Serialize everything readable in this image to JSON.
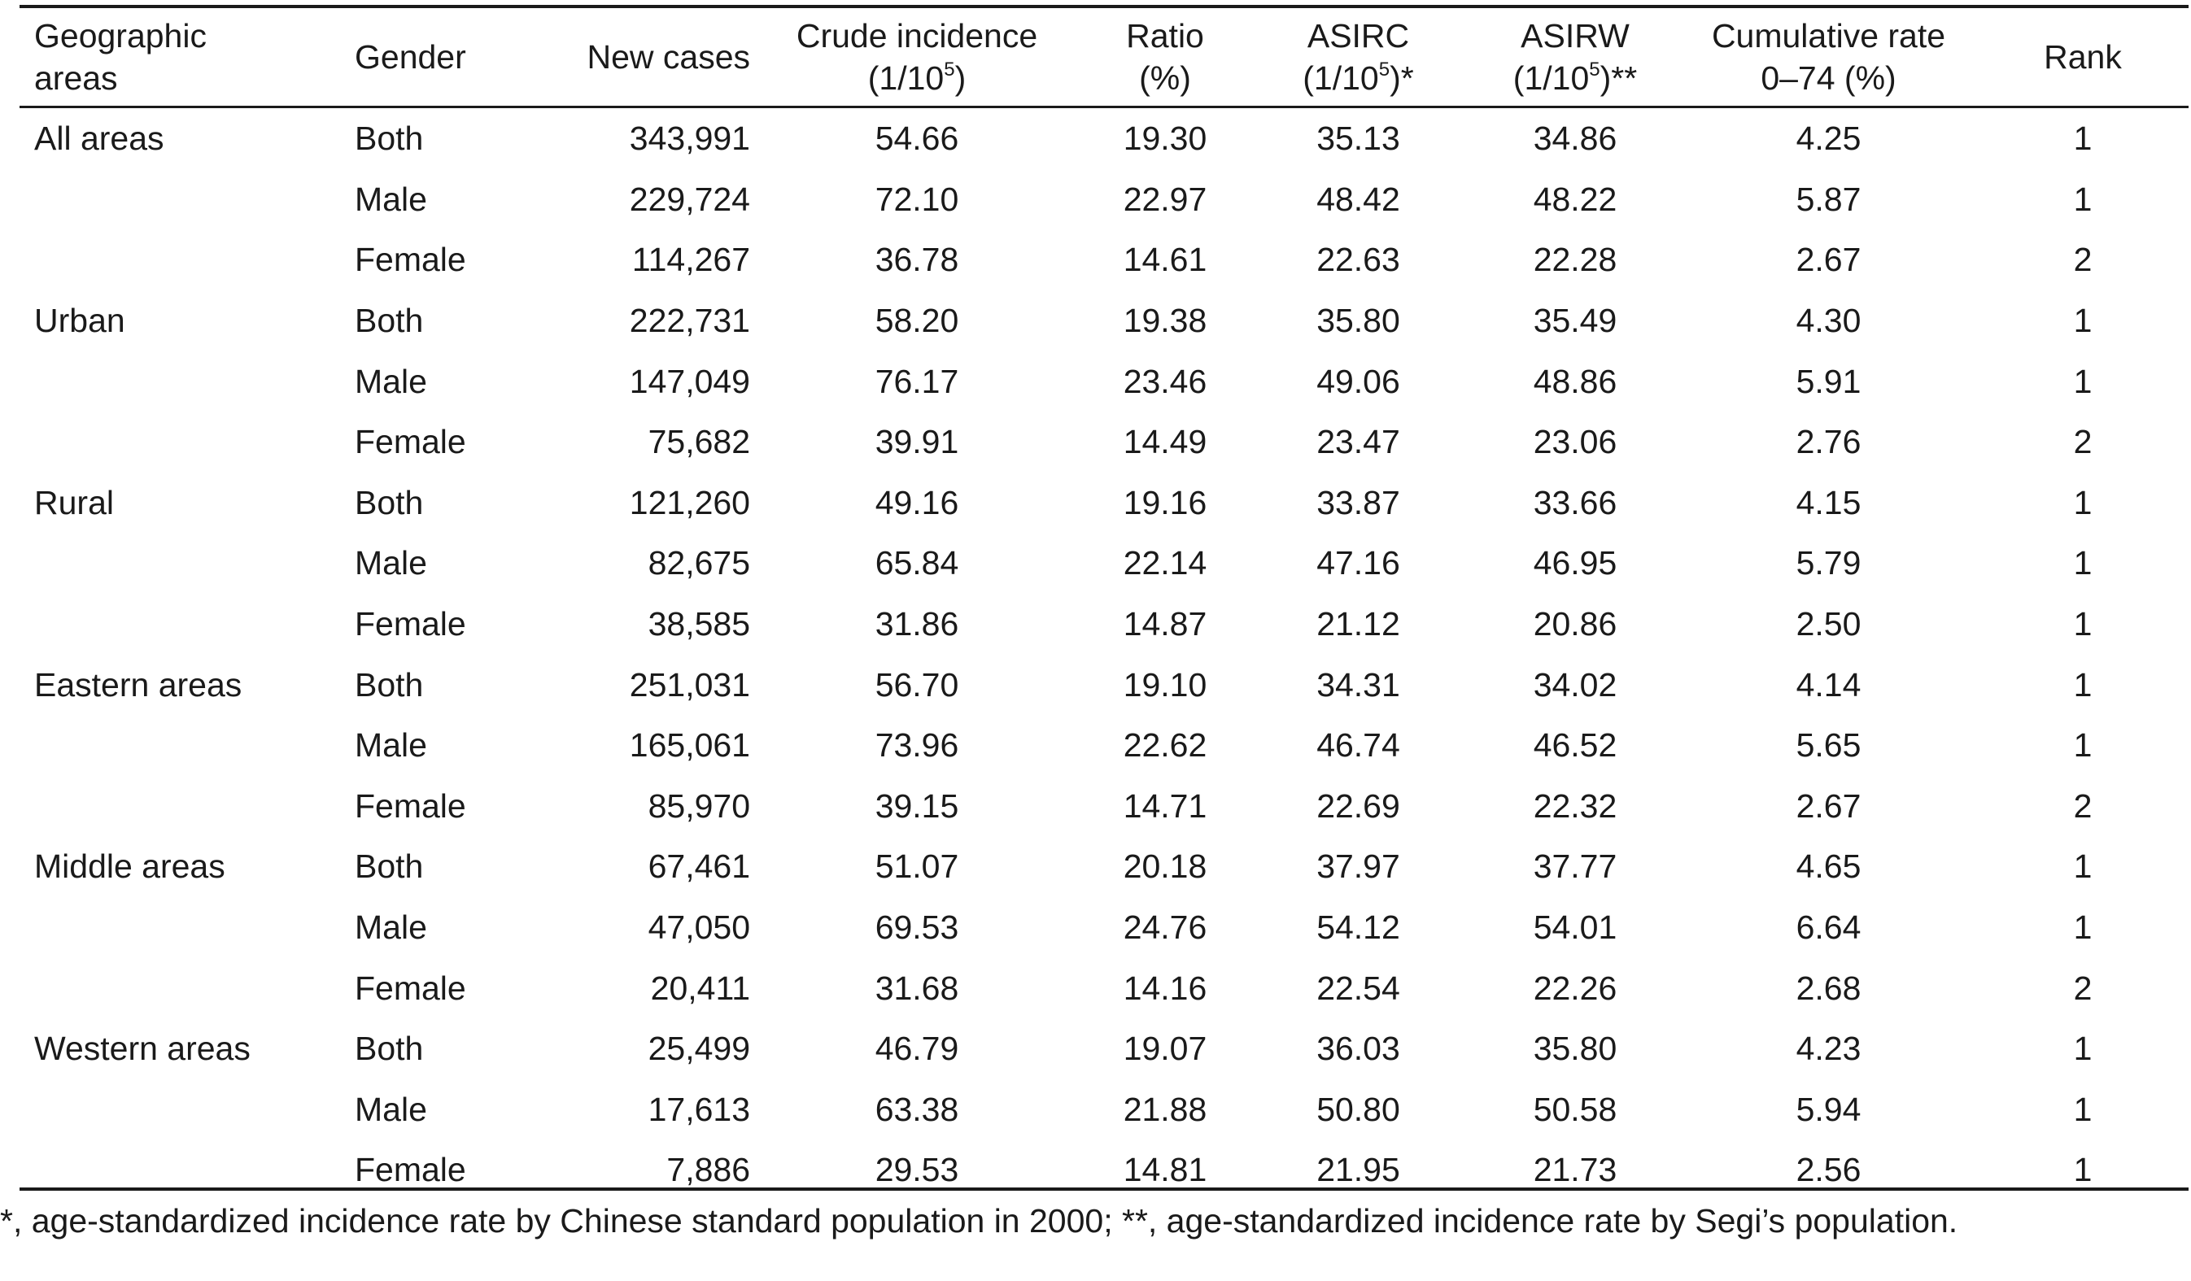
{
  "header": {
    "area": "Geographic areas",
    "gender": "Gender",
    "new_cases": "New cases",
    "crude_line1": "Crude incidence",
    "crude_unit_pre": "(1/10",
    "crude_unit_sup": "5",
    "crude_unit_post": ")",
    "ratio_line1": "Ratio",
    "ratio_line2": "(%)",
    "asirc_line1": "ASIRC",
    "asirc_unit_pre": "(1/10",
    "asirc_unit_sup": "5",
    "asirc_unit_post": ")*",
    "asirw_line1": "ASIRW",
    "asirw_unit_pre": "(1/10",
    "asirw_unit_sup": "5",
    "asirw_unit_post": ")**",
    "cum_line1": "Cumulative rate",
    "cum_line2": "0–74 (%)",
    "rank": "Rank"
  },
  "rows": [
    {
      "area": "All areas",
      "gender": "Both",
      "new_cases": "343,991",
      "crude": "54.66",
      "ratio": "19.30",
      "asirc": "35.13",
      "asirw": "34.86",
      "cum": "4.25",
      "rank": "1"
    },
    {
      "area": "",
      "gender": "Male",
      "new_cases": "229,724",
      "crude": "72.10",
      "ratio": "22.97",
      "asirc": "48.42",
      "asirw": "48.22",
      "cum": "5.87",
      "rank": "1"
    },
    {
      "area": "",
      "gender": "Female",
      "new_cases": "114,267",
      "crude": "36.78",
      "ratio": "14.61",
      "asirc": "22.63",
      "asirw": "22.28",
      "cum": "2.67",
      "rank": "2"
    },
    {
      "area": "Urban",
      "gender": "Both",
      "new_cases": "222,731",
      "crude": "58.20",
      "ratio": "19.38",
      "asirc": "35.80",
      "asirw": "35.49",
      "cum": "4.30",
      "rank": "1"
    },
    {
      "area": "",
      "gender": "Male",
      "new_cases": "147,049",
      "crude": "76.17",
      "ratio": "23.46",
      "asirc": "49.06",
      "asirw": "48.86",
      "cum": "5.91",
      "rank": "1"
    },
    {
      "area": "",
      "gender": "Female",
      "new_cases": "75,682",
      "crude": "39.91",
      "ratio": "14.49",
      "asirc": "23.47",
      "asirw": "23.06",
      "cum": "2.76",
      "rank": "2"
    },
    {
      "area": "Rural",
      "gender": "Both",
      "new_cases": "121,260",
      "crude": "49.16",
      "ratio": "19.16",
      "asirc": "33.87",
      "asirw": "33.66",
      "cum": "4.15",
      "rank": "1"
    },
    {
      "area": "",
      "gender": "Male",
      "new_cases": "82,675",
      "crude": "65.84",
      "ratio": "22.14",
      "asirc": "47.16",
      "asirw": "46.95",
      "cum": "5.79",
      "rank": "1"
    },
    {
      "area": "",
      "gender": "Female",
      "new_cases": "38,585",
      "crude": "31.86",
      "ratio": "14.87",
      "asirc": "21.12",
      "asirw": "20.86",
      "cum": "2.50",
      "rank": "1"
    },
    {
      "area": "Eastern areas",
      "gender": "Both",
      "new_cases": "251,031",
      "crude": "56.70",
      "ratio": "19.10",
      "asirc": "34.31",
      "asirw": "34.02",
      "cum": "4.14",
      "rank": "1"
    },
    {
      "area": "",
      "gender": "Male",
      "new_cases": "165,061",
      "crude": "73.96",
      "ratio": "22.62",
      "asirc": "46.74",
      "asirw": "46.52",
      "cum": "5.65",
      "rank": "1"
    },
    {
      "area": "",
      "gender": "Female",
      "new_cases": "85,970",
      "crude": "39.15",
      "ratio": "14.71",
      "asirc": "22.69",
      "asirw": "22.32",
      "cum": "2.67",
      "rank": "2"
    },
    {
      "area": "Middle areas",
      "gender": "Both",
      "new_cases": "67,461",
      "crude": "51.07",
      "ratio": "20.18",
      "asirc": "37.97",
      "asirw": "37.77",
      "cum": "4.65",
      "rank": "1"
    },
    {
      "area": "",
      "gender": "Male",
      "new_cases": "47,050",
      "crude": "69.53",
      "ratio": "24.76",
      "asirc": "54.12",
      "asirw": "54.01",
      "cum": "6.64",
      "rank": "1"
    },
    {
      "area": "",
      "gender": "Female",
      "new_cases": "20,411",
      "crude": "31.68",
      "ratio": "14.16",
      "asirc": "22.54",
      "asirw": "22.26",
      "cum": "2.68",
      "rank": "2"
    },
    {
      "area": "Western areas",
      "gender": "Both",
      "new_cases": "25,499",
      "crude": "46.79",
      "ratio": "19.07",
      "asirc": "36.03",
      "asirw": "35.80",
      "cum": "4.23",
      "rank": "1"
    },
    {
      "area": "",
      "gender": "Male",
      "new_cases": "17,613",
      "crude": "63.38",
      "ratio": "21.88",
      "asirc": "50.80",
      "asirw": "50.58",
      "cum": "5.94",
      "rank": "1"
    },
    {
      "area": "",
      "gender": "Female",
      "new_cases": "7,886",
      "crude": "29.53",
      "ratio": "14.81",
      "asirc": "21.95",
      "asirw": "21.73",
      "cum": "2.56",
      "rank": "1"
    }
  ],
  "footnote": "*, age-standardized incidence rate by Chinese standard population in 2000; **, age-standardized incidence rate by Segi’s population."
}
